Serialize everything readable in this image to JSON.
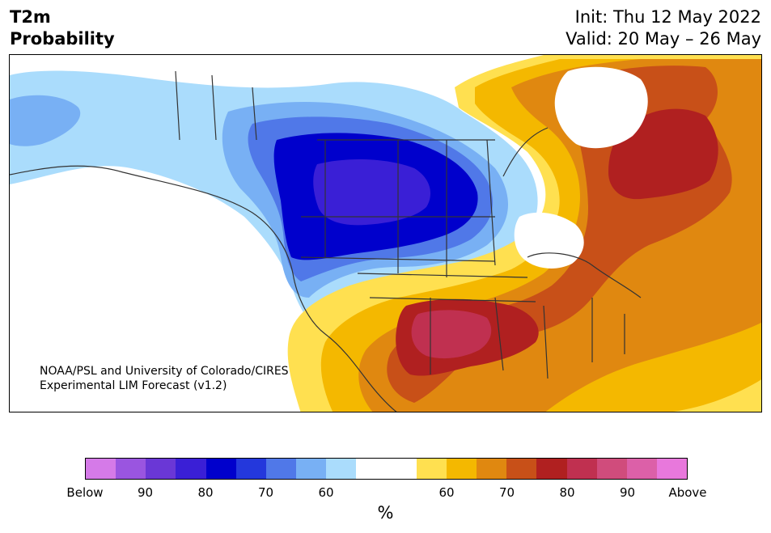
{
  "header": {
    "title_line1": "T2m",
    "title_line2": "Probability",
    "init": "Init: Thu 12 May 2022",
    "valid": "Valid: 20 May – 26 May"
  },
  "credit": {
    "line1": "NOAA/PSL and University of Colorado/CIRES",
    "line2": "Experimental LIM Forecast (v1.2)"
  },
  "colorbar": {
    "colors": [
      "#d57ae8",
      "#9a55e0",
      "#6a37d6",
      "#3a1fd6",
      "#0000cc",
      "#2438dc",
      "#5078e8",
      "#78b0f4",
      "#aadcfc",
      "#ffffff",
      "#ffffff",
      "#ffe050",
      "#f4b800",
      "#e08810",
      "#c85018",
      "#b02020",
      "#c03050",
      "#d04c7c",
      "#dc60a8",
      "#e878dc"
    ],
    "ticks": [
      "Below",
      "90",
      "80",
      "70",
      "60",
      "60",
      "70",
      "80",
      "90",
      "Above"
    ],
    "unit": "%"
  },
  "map_colors": {
    "ocean": "#ffffff",
    "light_blue": "#aadcfc",
    "mid_blue": "#78b0f4",
    "blue": "#5078e8",
    "deep_blue": "#0000cc",
    "indigo": "#3a1fd6",
    "yellow": "#ffe050",
    "gold": "#f4b800",
    "orange": "#e08810",
    "dark_orange": "#c85018",
    "red": "#b02020",
    "crimson": "#c03050",
    "border": "#333333"
  }
}
